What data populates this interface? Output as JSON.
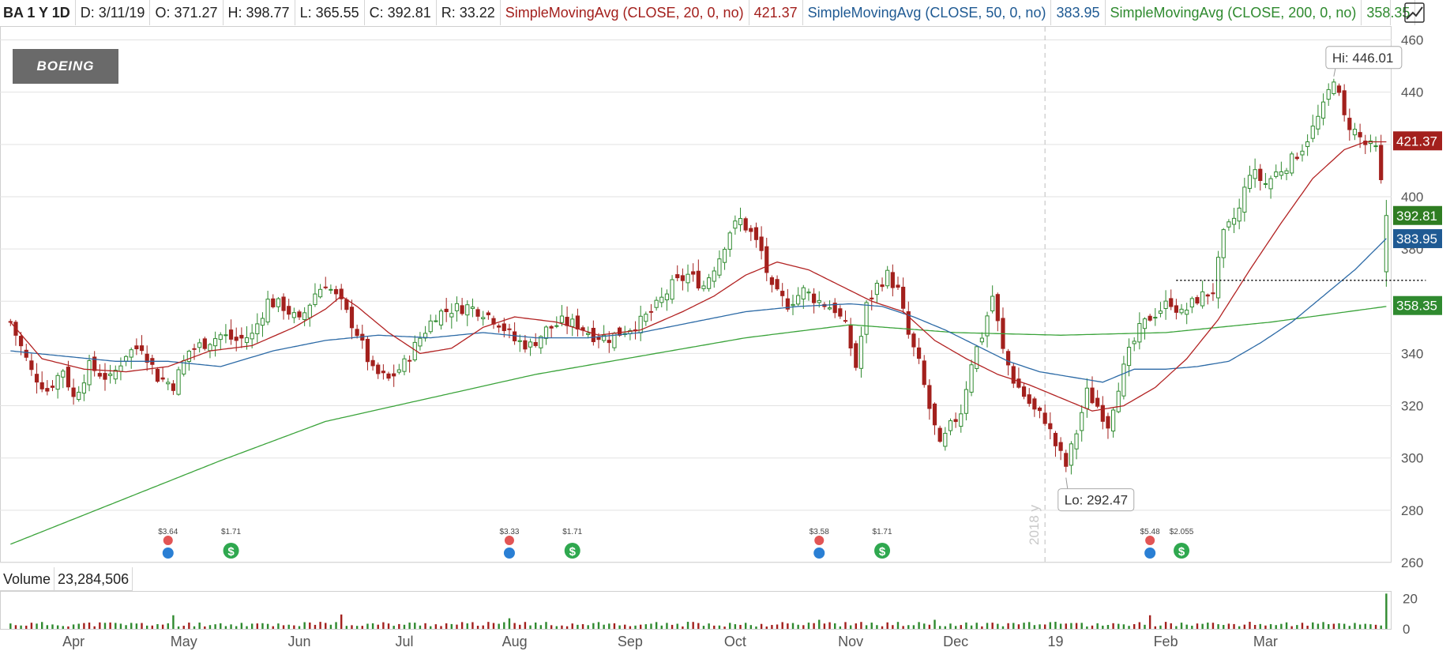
{
  "header": {
    "symbol_label": "BA 1 Y 1D",
    "date_label": "D: 3/11/19",
    "open_label": "O: 371.27",
    "high_label": "H: 398.77",
    "low_label": "L: 365.55",
    "close_label": "C: 392.81",
    "range_label": "R: 33.22",
    "sma20_label": "SimpleMovingAvg (CLOSE, 20, 0, no)",
    "sma20_value": "421.37",
    "sma50_label": "SimpleMovingAvg (CLOSE, 50, 0, no)",
    "sma50_value": "383.95",
    "sma200_label": "SimpleMovingAvg (CLOSE, 200, 0, no)",
    "sma200_value": "358.35",
    "corner_icon": "chart-style-icon"
  },
  "logo": {
    "text": "BOEING"
  },
  "volume_header": {
    "label": "Volume",
    "value": "23,284,506"
  },
  "colors": {
    "up": "#2f8a2f",
    "down": "#a3201d",
    "sma20": "#b22222",
    "sma50": "#2c6aa6",
    "sma200": "#3aa33a",
    "grid": "#e2e2e2"
  },
  "chart_data": {
    "type": "candlestick",
    "ylim": [
      260,
      465
    ],
    "y_ticks": [
      260,
      280,
      300,
      320,
      340,
      360,
      380,
      400,
      420,
      440,
      460
    ],
    "x_ticks": [
      {
        "label": "Apr",
        "t": 12
      },
      {
        "label": "May",
        "t": 33
      },
      {
        "label": "Jun",
        "t": 55
      },
      {
        "label": "Jul",
        "t": 75
      },
      {
        "label": "Aug",
        "t": 96
      },
      {
        "label": "Sep",
        "t": 118
      },
      {
        "label": "Oct",
        "t": 138
      },
      {
        "label": "Nov",
        "t": 160
      },
      {
        "label": "Dec",
        "t": 180
      },
      {
        "label": "19",
        "t": 199
      },
      {
        "label": "Feb",
        "t": 220
      },
      {
        "label": "Mar",
        "t": 239
      }
    ],
    "t_range": [
      -2,
      253
    ],
    "year_divider": {
      "label": "2018 y",
      "t": 197
    },
    "price_anchors": [
      [
        0,
        352
      ],
      [
        4,
        333
      ],
      [
        7,
        326
      ],
      [
        10,
        334
      ],
      [
        12,
        323
      ],
      [
        15,
        335
      ],
      [
        19,
        330
      ],
      [
        22,
        340
      ],
      [
        25,
        343
      ],
      [
        28,
        331
      ],
      [
        31,
        328
      ],
      [
        34,
        341
      ],
      [
        37,
        344
      ],
      [
        40,
        347
      ],
      [
        43,
        345
      ],
      [
        46,
        347
      ],
      [
        49,
        360
      ],
      [
        52,
        358
      ],
      [
        55,
        352
      ],
      [
        58,
        363
      ],
      [
        60,
        367
      ],
      [
        63,
        359
      ],
      [
        66,
        348
      ],
      [
        69,
        333
      ],
      [
        72,
        330
      ],
      [
        75,
        336
      ],
      [
        78,
        346
      ],
      [
        81,
        355
      ],
      [
        84,
        357
      ],
      [
        87,
        358
      ],
      [
        90,
        356
      ],
      [
        93,
        352
      ],
      [
        96,
        345
      ],
      [
        99,
        343
      ],
      [
        102,
        349
      ],
      [
        105,
        352
      ],
      [
        108,
        351
      ],
      [
        111,
        347
      ],
      [
        114,
        346
      ],
      [
        117,
        349
      ],
      [
        120,
        352
      ],
      [
        123,
        358
      ],
      [
        126,
        366
      ],
      [
        129,
        370
      ],
      [
        132,
        366
      ],
      [
        135,
        377
      ],
      [
        137,
        387
      ],
      [
        139,
        391
      ],
      [
        141,
        386
      ],
      [
        143,
        379
      ],
      [
        145,
        364
      ],
      [
        148,
        359
      ],
      [
        151,
        364
      ],
      [
        154,
        360
      ],
      [
        157,
        357
      ],
      [
        159,
        350
      ],
      [
        161,
        335
      ],
      [
        163,
        358
      ],
      [
        165,
        366
      ],
      [
        167,
        370
      ],
      [
        169,
        364
      ],
      [
        171,
        347
      ],
      [
        173,
        336
      ],
      [
        175,
        319
      ],
      [
        177,
        304
      ],
      [
        179,
        312
      ],
      [
        181,
        318
      ],
      [
        183,
        337
      ],
      [
        185,
        347
      ],
      [
        187,
        362
      ],
      [
        189,
        341
      ],
      [
        191,
        330
      ],
      [
        193,
        324
      ],
      [
        195,
        318
      ],
      [
        197,
        315
      ],
      [
        199,
        305
      ],
      [
        201,
        297
      ],
      [
        203,
        310
      ],
      [
        205,
        325
      ],
      [
        207,
        320
      ],
      [
        209,
        313
      ],
      [
        211,
        328
      ],
      [
        213,
        340
      ],
      [
        215,
        349
      ],
      [
        217,
        354
      ],
      [
        219,
        357
      ],
      [
        221,
        360
      ],
      [
        223,
        355
      ],
      [
        226,
        361
      ],
      [
        229,
        364
      ],
      [
        231,
        385
      ],
      [
        234,
        395
      ],
      [
        236,
        410
      ],
      [
        239,
        405
      ],
      [
        241,
        409
      ],
      [
        244,
        414
      ],
      [
        246,
        419
      ],
      [
        248,
        426
      ],
      [
        250,
        434
      ],
      [
        252,
        446
      ],
      [
        254,
        430
      ],
      [
        256,
        425
      ],
      [
        258,
        420
      ],
      [
        260,
        418
      ],
      [
        262,
        392
      ]
    ],
    "sma20_anchors": [
      [
        0,
        352
      ],
      [
        6,
        338
      ],
      [
        14,
        334
      ],
      [
        22,
        333
      ],
      [
        30,
        335
      ],
      [
        38,
        341
      ],
      [
        46,
        343
      ],
      [
        54,
        350
      ],
      [
        60,
        357
      ],
      [
        63,
        362
      ],
      [
        66,
        358
      ],
      [
        72,
        348
      ],
      [
        78,
        340
      ],
      [
        84,
        342
      ],
      [
        90,
        350
      ],
      [
        96,
        354
      ],
      [
        104,
        352
      ],
      [
        112,
        347
      ],
      [
        120,
        349
      ],
      [
        128,
        356
      ],
      [
        134,
        362
      ],
      [
        140,
        370
      ],
      [
        146,
        375
      ],
      [
        152,
        372
      ],
      [
        158,
        366
      ],
      [
        164,
        360
      ],
      [
        170,
        356
      ],
      [
        176,
        345
      ],
      [
        182,
        338
      ],
      [
        188,
        332
      ],
      [
        194,
        328
      ],
      [
        200,
        323
      ],
      [
        206,
        318
      ],
      [
        212,
        320
      ],
      [
        218,
        327
      ],
      [
        224,
        338
      ],
      [
        230,
        353
      ],
      [
        236,
        372
      ],
      [
        242,
        390
      ],
      [
        248,
        407
      ],
      [
        254,
        418
      ],
      [
        258,
        421
      ],
      [
        262,
        421
      ]
    ],
    "sma50_anchors": [
      [
        0,
        341
      ],
      [
        10,
        339
      ],
      [
        20,
        337
      ],
      [
        30,
        337
      ],
      [
        40,
        335
      ],
      [
        50,
        341
      ],
      [
        60,
        345
      ],
      [
        70,
        347
      ],
      [
        80,
        346
      ],
      [
        90,
        348
      ],
      [
        100,
        346
      ],
      [
        110,
        346
      ],
      [
        120,
        348
      ],
      [
        130,
        352
      ],
      [
        140,
        356
      ],
      [
        150,
        358
      ],
      [
        160,
        359
      ],
      [
        166,
        358
      ],
      [
        172,
        354
      ],
      [
        178,
        349
      ],
      [
        184,
        343
      ],
      [
        190,
        337
      ],
      [
        196,
        333
      ],
      [
        202,
        331
      ],
      [
        208,
        329
      ],
      [
        214,
        334
      ],
      [
        220,
        334
      ],
      [
        226,
        335
      ],
      [
        232,
        337
      ],
      [
        238,
        344
      ],
      [
        244,
        352
      ],
      [
        250,
        362
      ],
      [
        256,
        372
      ],
      [
        262,
        384
      ]
    ],
    "sma200_anchors": [
      [
        0,
        267
      ],
      [
        20,
        283
      ],
      [
        40,
        299
      ],
      [
        60,
        314
      ],
      [
        80,
        323
      ],
      [
        100,
        332
      ],
      [
        120,
        339
      ],
      [
        140,
        346
      ],
      [
        160,
        351
      ],
      [
        180,
        348
      ],
      [
        200,
        347
      ],
      [
        220,
        348
      ],
      [
        240,
        352
      ],
      [
        262,
        358
      ]
    ],
    "resistance_level": 368,
    "resistance_t": [
      222,
      262
    ],
    "annotations": [
      {
        "kind": "hi",
        "label": "Hi: 446.01",
        "t": 252,
        "value": 446.01
      },
      {
        "kind": "lo",
        "label": "Lo: 292.47",
        "t": 201,
        "value": 292.47
      }
    ],
    "last_values": [
      {
        "label": "421.37",
        "value": 421.37,
        "color": "#a3201d"
      },
      {
        "label": "392.81",
        "value": 392.81,
        "color": "#2f7d22"
      },
      {
        "label": "383.95",
        "value": 383.95,
        "color": "#1f5a93"
      },
      {
        "label": "358.35",
        "value": 358.35,
        "color": "#2f8a2f"
      }
    ],
    "events": [
      {
        "t": 30,
        "kind": "earnings",
        "label": "$3.64"
      },
      {
        "t": 42,
        "kind": "dividend",
        "label": "$1.71"
      },
      {
        "t": 95,
        "kind": "earnings",
        "label": "$3.33"
      },
      {
        "t": 107,
        "kind": "dividend",
        "label": "$1.71"
      },
      {
        "t": 154,
        "kind": "earnings",
        "label": "$3.58"
      },
      {
        "t": 166,
        "kind": "dividend",
        "label": "$1.71"
      },
      {
        "t": 217,
        "kind": "earnings",
        "label": "$5.48"
      },
      {
        "t": 223,
        "kind": "dividend",
        "label": "$2.055"
      }
    ],
    "volume": {
      "ylim": [
        0,
        24
      ],
      "y_ticks": [
        {
          "label": "20",
          "value": 20
        },
        {
          "label": "0",
          "value": 0
        }
      ],
      "spikes": [
        [
          31,
          9
        ],
        [
          63,
          9.5
        ],
        [
          95,
          7
        ],
        [
          154,
          6
        ],
        [
          176,
          6
        ],
        [
          217,
          9
        ],
        [
          262,
          23.3
        ]
      ]
    }
  }
}
